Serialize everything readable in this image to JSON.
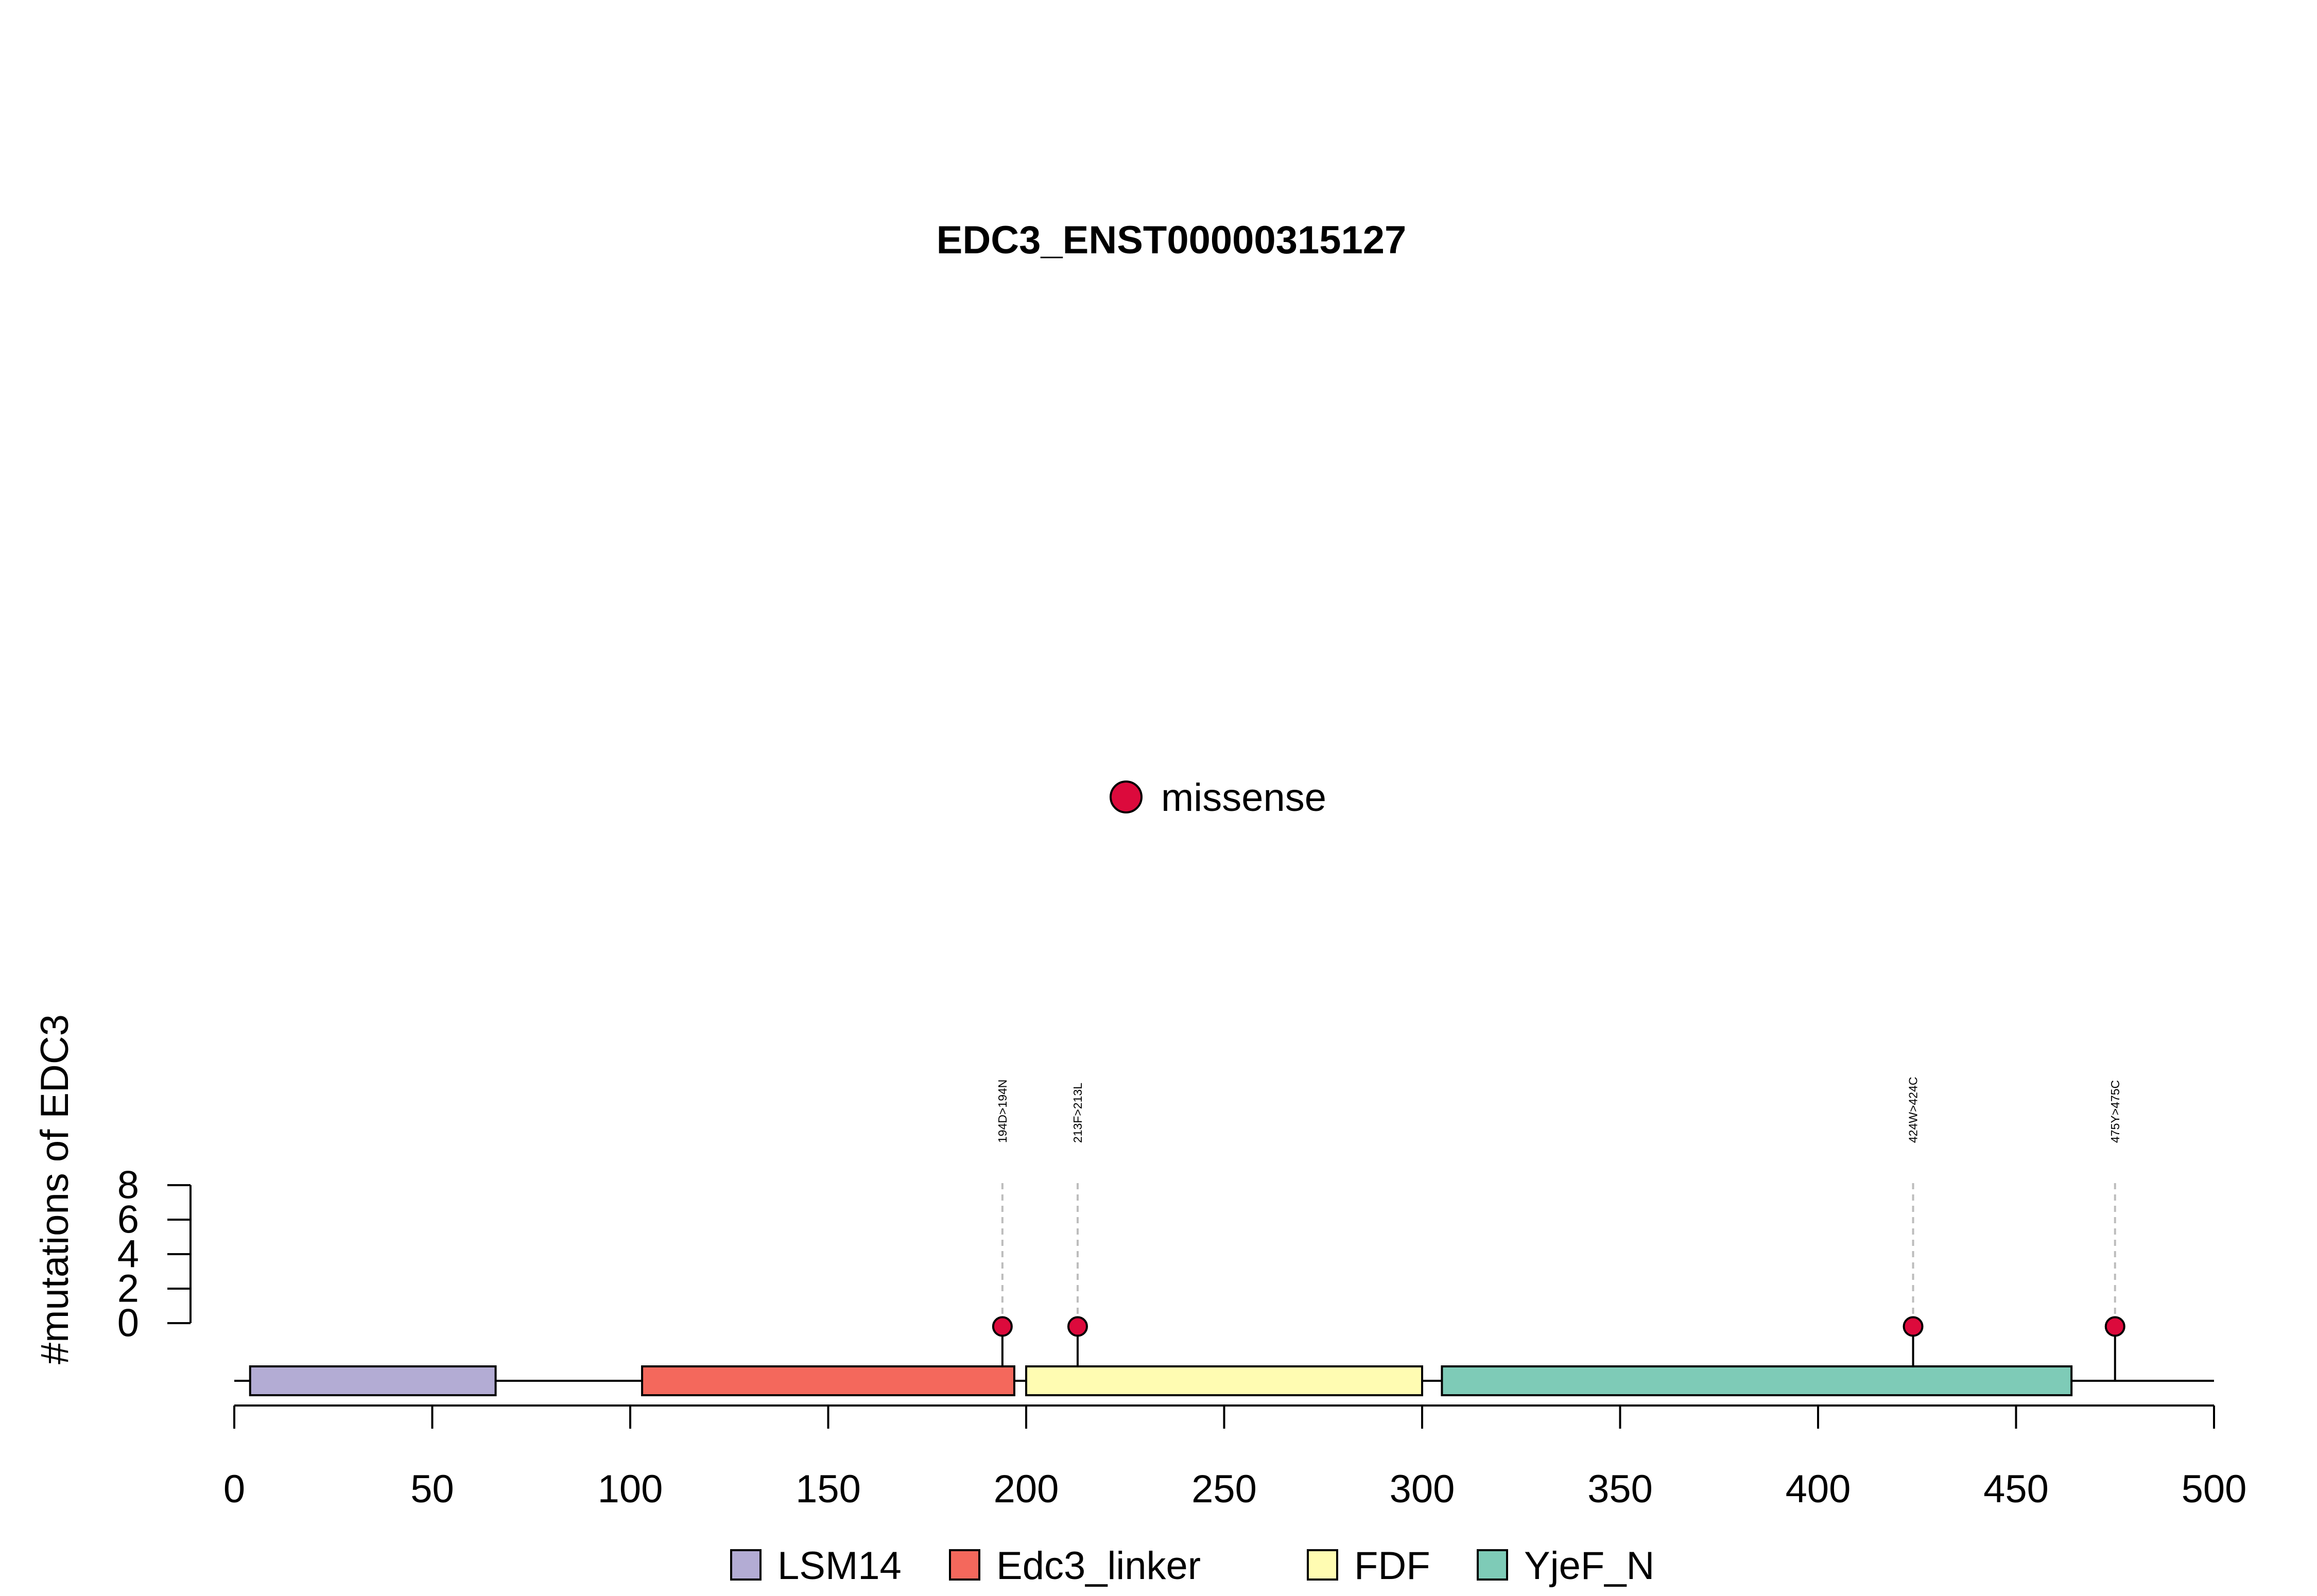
{
  "chart_data": {
    "type": "lollipop",
    "title": "EDC3_ENST00000315127",
    "ylabel": "#mutations of EDC3",
    "xlim": [
      0,
      500
    ],
    "x_ticks": [
      0,
      50,
      100,
      150,
      200,
      250,
      300,
      350,
      400,
      450,
      500
    ],
    "y_ticks": [
      0,
      2,
      4,
      6,
      8
    ],
    "ylim": [
      0,
      8
    ],
    "protein_length": 500,
    "domains": [
      {
        "name": "LSM14",
        "start": 4,
        "end": 66,
        "color": "#b3acd4"
      },
      {
        "name": "Edc3_linker",
        "start": 103,
        "end": 197,
        "color": "#f4685c"
      },
      {
        "name": "FDF",
        "start": 200,
        "end": 300,
        "color": "#fffcb2"
      },
      {
        "name": "YjeF_N",
        "start": 305,
        "end": 464,
        "color": "#7ecbb7"
      }
    ],
    "mutations": [
      {
        "position": 194,
        "label": "194D>194N",
        "count": 1,
        "type": "missense"
      },
      {
        "position": 213,
        "label": "213F>213L",
        "count": 1,
        "type": "missense"
      },
      {
        "position": 424,
        "label": "424W>424C",
        "count": 1,
        "type": "missense"
      },
      {
        "position": 475,
        "label": "475Y>475C",
        "count": 1,
        "type": "missense"
      }
    ],
    "mutation_legend": [
      {
        "label": "missense",
        "color": "#dc0a3c"
      }
    ],
    "legend_placement": "bottom"
  }
}
